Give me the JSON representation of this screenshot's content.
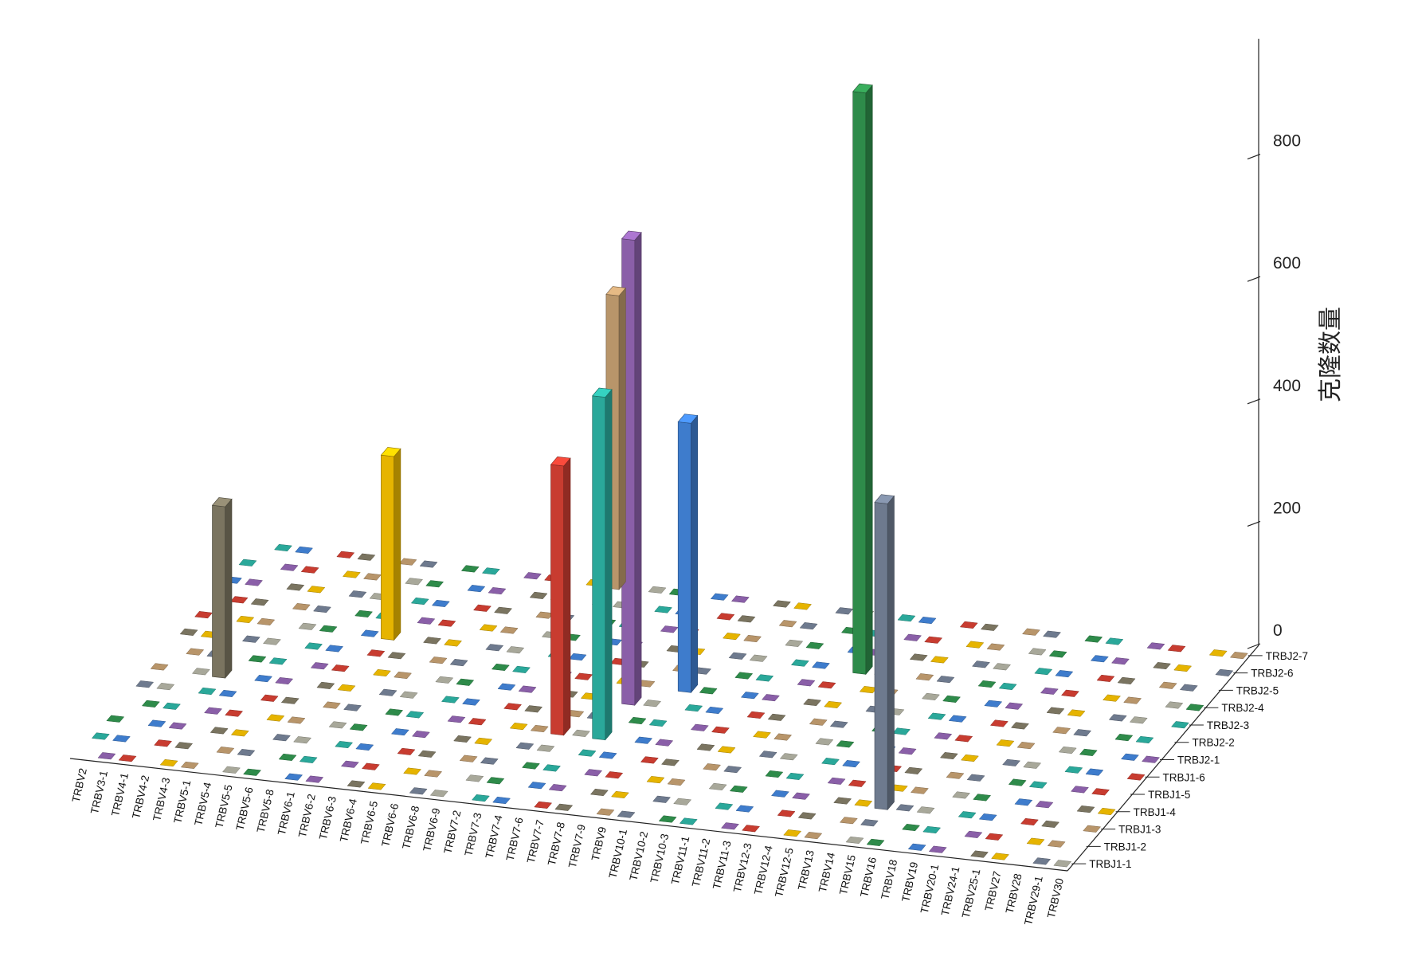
{
  "chart_data": {
    "type": "bar3d",
    "title": "",
    "zlabel": "克隆数量",
    "zlim": [
      0,
      900
    ],
    "z_ticks": [
      0,
      200,
      400,
      600,
      800
    ],
    "x_categories": [
      "TRBV2",
      "TRBV3-1",
      "TRBV4-1",
      "TRBV4-2",
      "TRBV4-3",
      "TRBV5-1",
      "TRBV5-4",
      "TRBV5-5",
      "TRBV5-6",
      "TRBV5-8",
      "TRBV6-1",
      "TRBV6-2",
      "TRBV6-3",
      "TRBV6-4",
      "TRBV6-5",
      "TRBV6-6",
      "TRBV6-8",
      "TRBV6-9",
      "TRBV7-2",
      "TRBV7-3",
      "TRBV7-4",
      "TRBV7-6",
      "TRBV7-7",
      "TRBV7-8",
      "TRBV7-9",
      "TRBV9",
      "TRBV10-1",
      "TRBV10-2",
      "TRBV10-3",
      "TRBV11-1",
      "TRBV11-2",
      "TRBV11-3",
      "TRBV12-3",
      "TRBV12-4",
      "TRBV12-5",
      "TRBV13",
      "TRBV14",
      "TRBV15",
      "TRBV16",
      "TRBV18",
      "TRBV19",
      "TRBV20-1",
      "TRBV24-1",
      "TRBV25-1",
      "TRBV27",
      "TRBV28",
      "TRBV29-1",
      "TRBV30"
    ],
    "y_categories": [
      "TRBJ1-1",
      "TRBJ1-2",
      "TRBJ1-3",
      "TRBJ1-4",
      "TRBJ1-5",
      "TRBJ1-6",
      "TRBJ2-1",
      "TRBJ2-2",
      "TRBJ2-3",
      "TRBJ2-4",
      "TRBJ2-5",
      "TRBJ2-6",
      "TRBJ2-7"
    ],
    "series_colors": [
      "#3e7ccc",
      "#a8a89a",
      "#e6b400",
      "#8a5fa8",
      "#2e8b4a",
      "#b8956a",
      "#c83c30",
      "#2aa89a",
      "#6e7a8e",
      "#7a7460"
    ],
    "bars": [
      [
        9,
        8,
        300
      ],
      [
        22,
        6,
        760
      ],
      [
        31,
        9,
        950
      ],
      [
        17,
        12,
        480
      ],
      [
        20,
        4,
        440
      ],
      [
        22,
        4,
        560
      ],
      [
        37,
        2,
        500
      ],
      [
        3,
        5,
        280
      ],
      [
        24,
        7,
        440
      ]
    ]
  }
}
